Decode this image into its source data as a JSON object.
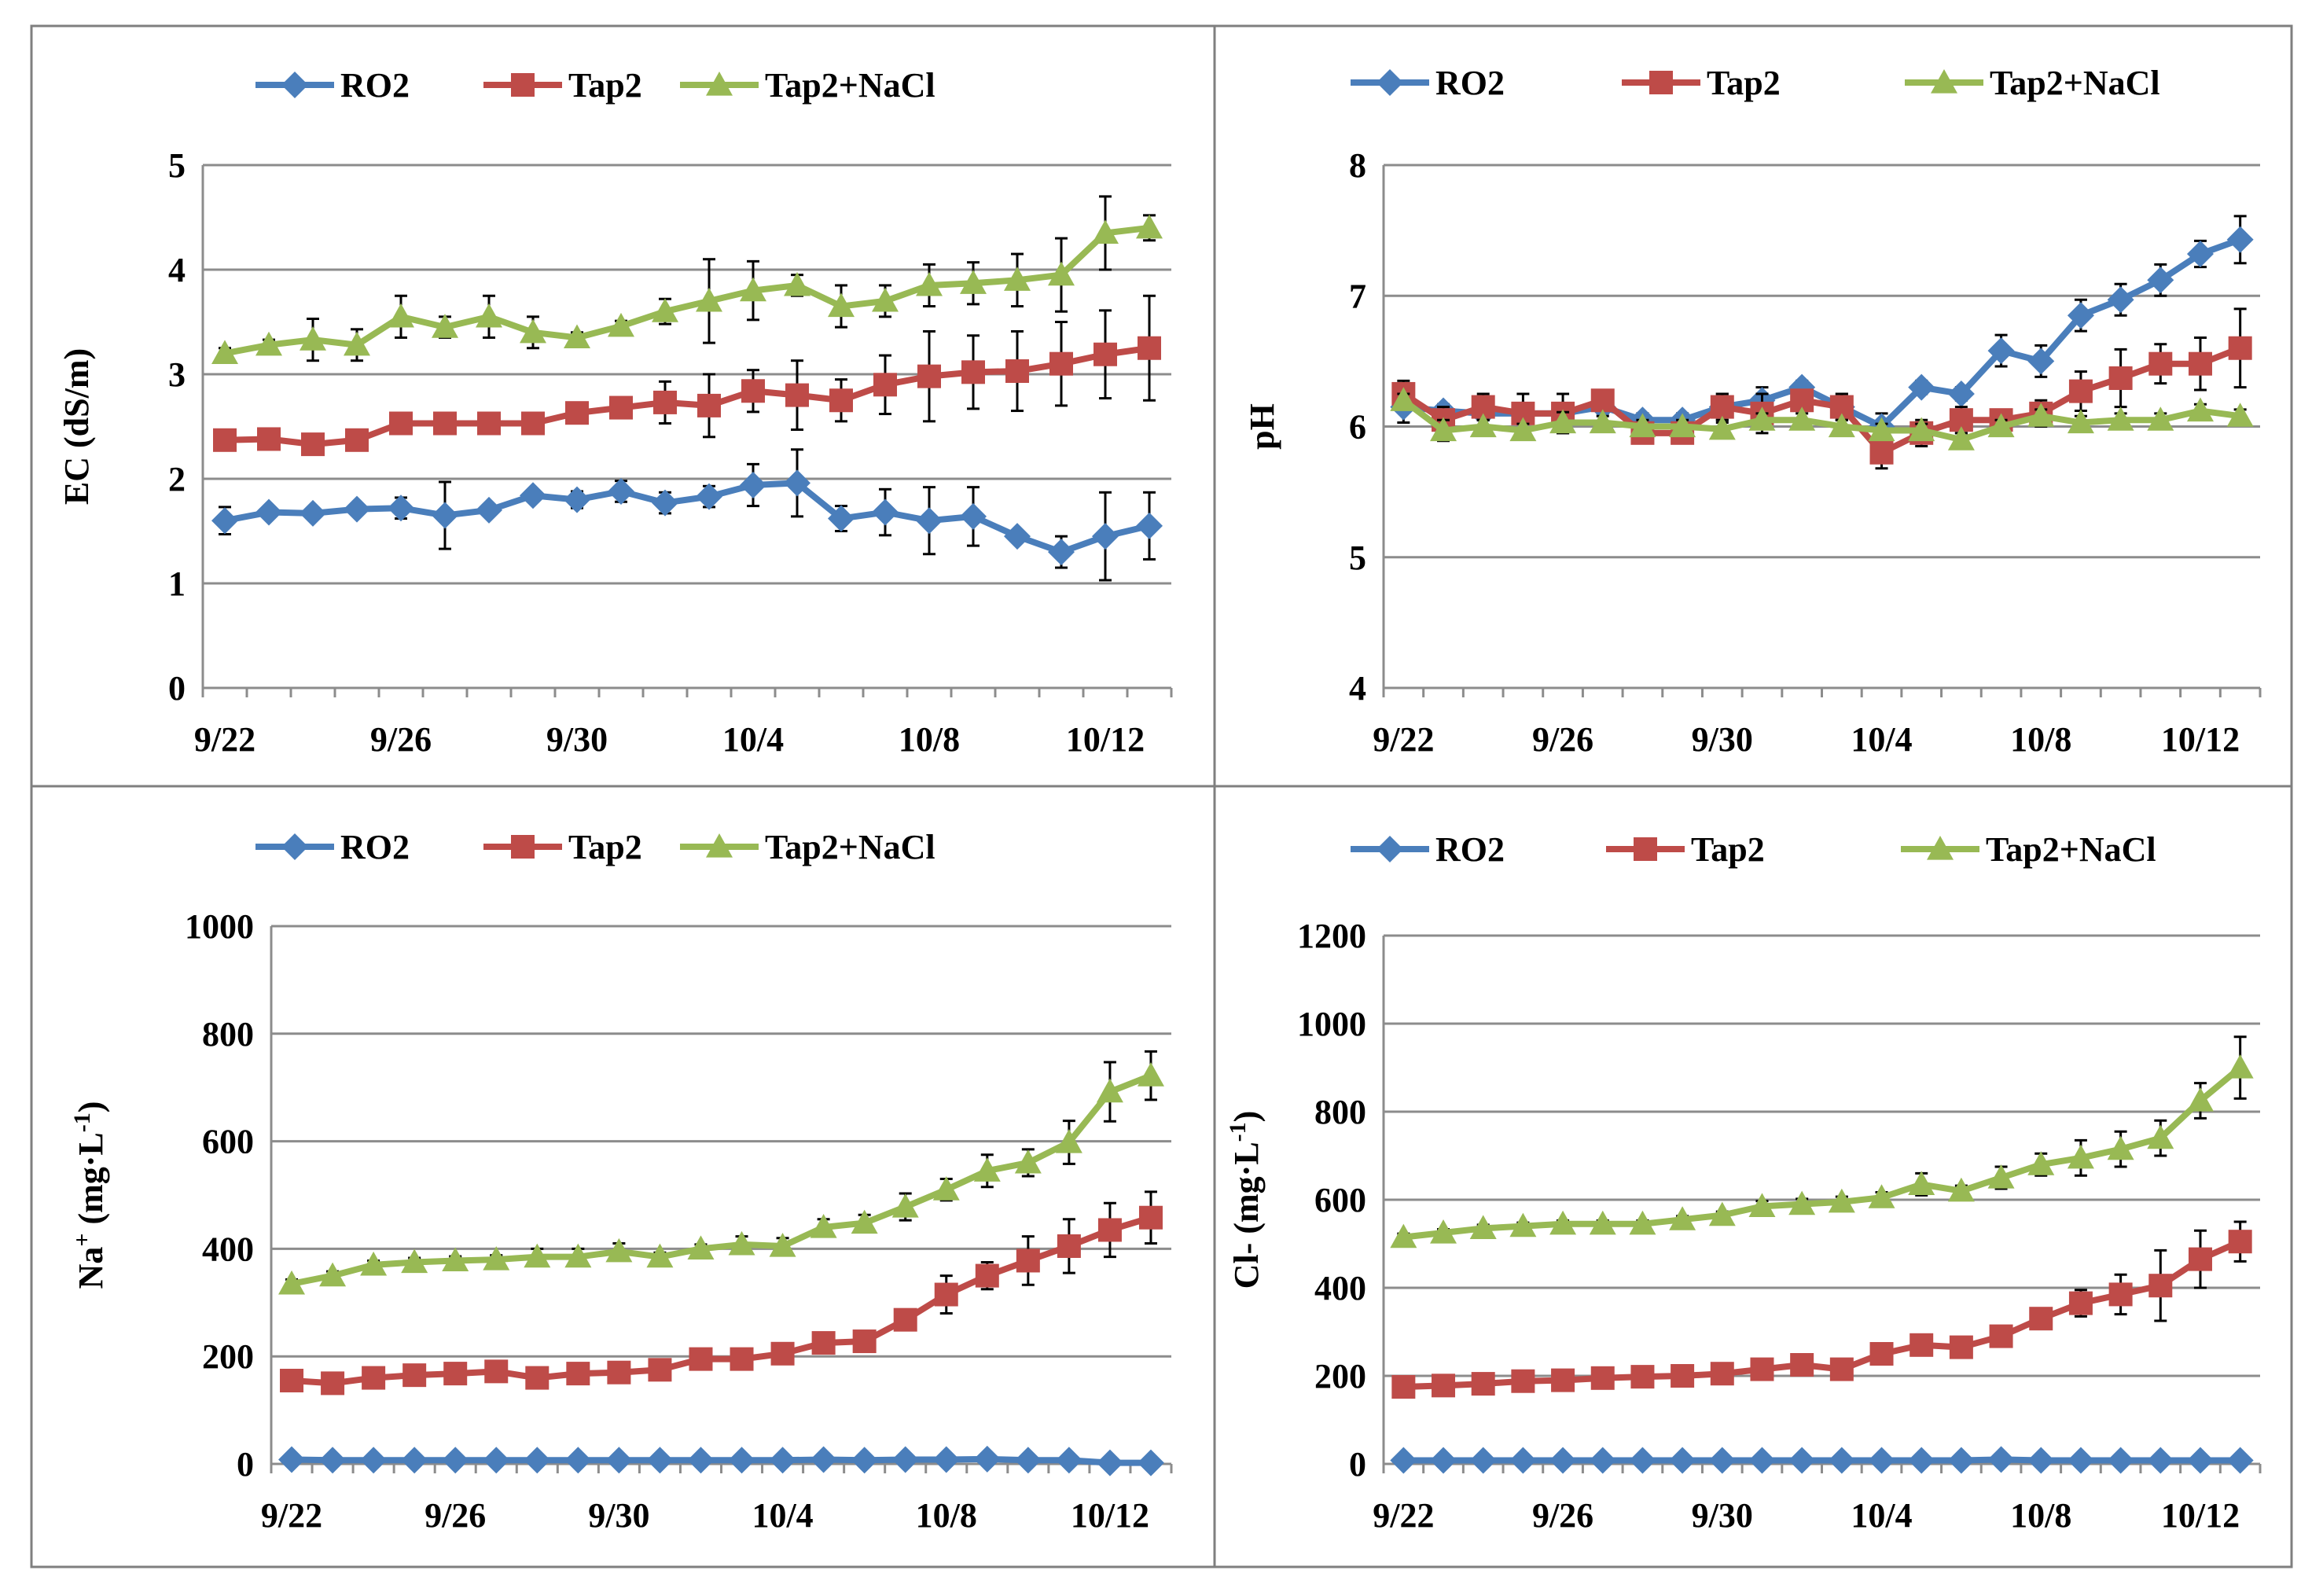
{
  "chart_data": [
    {
      "type": "line",
      "ylabel": "EC (dS/m)",
      "ylim": [
        0,
        5
      ],
      "yticks": [
        0,
        1,
        2,
        3,
        4,
        5
      ],
      "grid": true,
      "legend": "top",
      "x": [
        "9/22",
        "9/23",
        "9/24",
        "9/25",
        "9/26",
        "9/27",
        "9/28",
        "9/29",
        "9/30",
        "10/1",
        "10/2",
        "10/3",
        "10/4",
        "10/5",
        "10/6",
        "10/7",
        "10/8",
        "10/9",
        "10/10",
        "10/11",
        "10/12",
        "10/13"
      ],
      "xtick_labels": [
        "9/22",
        "9/26",
        "9/30",
        "10/4",
        "10/8",
        "10/12"
      ],
      "series": [
        {
          "name": "RO2",
          "color": "#4a7ebb",
          "marker": "diamond",
          "values": [
            1.6,
            1.68,
            1.67,
            1.71,
            1.72,
            1.65,
            1.7,
            1.84,
            1.8,
            1.88,
            1.77,
            1.83,
            1.94,
            1.96,
            1.62,
            1.68,
            1.6,
            1.64,
            1.45,
            1.3,
            1.45,
            1.55
          ],
          "errors": [
            0.13,
            0.05,
            0.05,
            0.05,
            0.1,
            0.32,
            0.05,
            0.05,
            0.08,
            0.1,
            0.1,
            0.1,
            0.2,
            0.32,
            0.12,
            0.22,
            0.32,
            0.28,
            0.05,
            0.15,
            0.42,
            0.32
          ]
        },
        {
          "name": "Tap2",
          "color": "#be4b48",
          "marker": "square",
          "values": [
            2.37,
            2.38,
            2.33,
            2.37,
            2.53,
            2.53,
            2.53,
            2.53,
            2.63,
            2.68,
            2.73,
            2.7,
            2.84,
            2.8,
            2.75,
            2.9,
            2.98,
            3.02,
            3.03,
            3.1,
            3.19,
            3.25
          ],
          "errors": [
            0.05,
            0.05,
            0.05,
            0.05,
            0.05,
            0.05,
            0.05,
            0.05,
            0.05,
            0.05,
            0.2,
            0.3,
            0.2,
            0.33,
            0.2,
            0.28,
            0.43,
            0.35,
            0.38,
            0.4,
            0.42,
            0.5
          ]
        },
        {
          "name": "Tap2+NaCl",
          "color": "#98b954",
          "marker": "triangle",
          "values": [
            3.2,
            3.28,
            3.33,
            3.28,
            3.55,
            3.45,
            3.55,
            3.4,
            3.35,
            3.46,
            3.6,
            3.7,
            3.8,
            3.85,
            3.65,
            3.7,
            3.85,
            3.87,
            3.9,
            3.95,
            4.35,
            4.4
          ],
          "errors": [
            0.05,
            0.05,
            0.2,
            0.15,
            0.2,
            0.1,
            0.2,
            0.15,
            0.05,
            0.05,
            0.12,
            0.4,
            0.28,
            0.1,
            0.2,
            0.15,
            0.2,
            0.2,
            0.25,
            0.35,
            0.35,
            0.12
          ]
        }
      ]
    },
    {
      "type": "line",
      "ylabel": "pH",
      "ylim": [
        4,
        8
      ],
      "yticks": [
        4,
        5,
        6,
        7,
        8
      ],
      "grid": true,
      "legend": "top",
      "x": [
        "9/22",
        "9/23",
        "9/24",
        "9/25",
        "9/26",
        "9/27",
        "9/28",
        "9/29",
        "9/30",
        "10/1",
        "10/2",
        "10/3",
        "10/4",
        "10/5",
        "10/6",
        "10/7",
        "10/8",
        "10/9",
        "10/10",
        "10/11",
        "10/12",
        "10/13"
      ],
      "xtick_labels": [
        "9/22",
        "9/26",
        "9/30",
        "10/4",
        "10/8",
        "10/12"
      ],
      "series": [
        {
          "name": "RO2",
          "color": "#4a7ebb",
          "marker": "diamond",
          "values": [
            6.15,
            6.12,
            6.1,
            6.1,
            6.1,
            6.15,
            6.05,
            6.05,
            6.15,
            6.2,
            6.3,
            6.15,
            6.0,
            6.3,
            6.25,
            6.58,
            6.5,
            6.85,
            6.97,
            7.12,
            7.32,
            7.43
          ],
          "errors": [
            0.12,
            0.05,
            0.05,
            0.05,
            0.05,
            0.05,
            0.05,
            0.05,
            0.1,
            0.1,
            0.05,
            0.1,
            0.1,
            0.05,
            0.05,
            0.12,
            0.12,
            0.12,
            0.12,
            0.12,
            0.1,
            0.18
          ]
        },
        {
          "name": "Tap2",
          "color": "#be4b48",
          "marker": "square",
          "values": [
            6.25,
            6.05,
            6.15,
            6.1,
            6.1,
            6.2,
            5.95,
            5.95,
            6.15,
            6.1,
            6.2,
            6.15,
            5.8,
            5.95,
            6.05,
            6.05,
            6.1,
            6.27,
            6.37,
            6.48,
            6.48,
            6.6
          ],
          "errors": [
            0.1,
            0.1,
            0.1,
            0.15,
            0.15,
            0.05,
            0.05,
            0.05,
            0.1,
            0.15,
            0.05,
            0.1,
            0.12,
            0.1,
            0.1,
            0.05,
            0.1,
            0.15,
            0.22,
            0.15,
            0.2,
            0.3
          ]
        },
        {
          "name": "Tap2+NaCl",
          "color": "#98b954",
          "marker": "triangle",
          "values": [
            6.2,
            5.97,
            6.0,
            5.97,
            6.03,
            6.03,
            6.0,
            6.0,
            5.98,
            6.05,
            6.05,
            6.0,
            5.97,
            5.97,
            5.9,
            6.0,
            6.08,
            6.03,
            6.05,
            6.05,
            6.12,
            6.08
          ],
          "errors": [
            0.05,
            0.08,
            0.05,
            0.05,
            0.08,
            0.05,
            0.05,
            0.05,
            0.05,
            0.05,
            0.05,
            0.05,
            0.05,
            0.05,
            0.05,
            0.05,
            0.05,
            0.05,
            0.05,
            0.05,
            0.05,
            0.05
          ]
        }
      ]
    },
    {
      "type": "line",
      "ylabel_main": "Na",
      "ylabel_sup": "+",
      "ylabel_units_start": " (mg·L",
      "ylabel_units_sup": "-1",
      "ylabel_units_end": ")",
      "ylim": [
        0,
        1000
      ],
      "yticks": [
        0,
        200,
        400,
        600,
        800,
        1000
      ],
      "grid": true,
      "legend": "top",
      "x": [
        "9/22",
        "9/23",
        "9/24",
        "9/25",
        "9/26",
        "9/27",
        "9/28",
        "9/29",
        "9/30",
        "10/1",
        "10/2",
        "10/3",
        "10/4",
        "10/5",
        "10/6",
        "10/7",
        "10/8",
        "10/9",
        "10/10",
        "10/11",
        "10/12",
        "10/13"
      ],
      "xtick_labels": [
        "9/22",
        "9/26",
        "9/30",
        "10/4",
        "10/8",
        "10/12"
      ],
      "series": [
        {
          "name": "RO2",
          "color": "#4a7ebb",
          "marker": "diamond",
          "values": [
            8,
            7,
            7,
            7,
            7,
            7,
            7,
            7,
            7,
            7,
            7,
            7,
            7,
            8,
            7,
            8,
            8,
            9,
            7,
            7,
            2,
            2
          ],
          "errors": [
            0,
            0,
            0,
            0,
            0,
            0,
            0,
            0,
            0,
            0,
            0,
            0,
            0,
            0,
            0,
            0,
            0,
            0,
            0,
            0,
            0,
            0
          ]
        },
        {
          "name": "Tap2",
          "color": "#be4b48",
          "marker": "square",
          "values": [
            155,
            150,
            160,
            165,
            168,
            172,
            160,
            168,
            170,
            175,
            195,
            195,
            205,
            225,
            228,
            268,
            315,
            350,
            378,
            405,
            435,
            458
          ],
          "errors": [
            8,
            8,
            8,
            8,
            8,
            8,
            8,
            8,
            8,
            8,
            8,
            8,
            8,
            8,
            8,
            12,
            35,
            25,
            45,
            50,
            50,
            48
          ]
        },
        {
          "name": "Tap2+NaCl",
          "color": "#98b954",
          "marker": "triangle",
          "values": [
            335,
            350,
            370,
            375,
            378,
            380,
            385,
            385,
            395,
            385,
            400,
            408,
            405,
            440,
            448,
            478,
            510,
            545,
            560,
            598,
            692,
            722
          ],
          "errors": [
            8,
            8,
            8,
            8,
            8,
            8,
            15,
            15,
            15,
            8,
            8,
            15,
            15,
            15,
            15,
            25,
            20,
            30,
            25,
            40,
            55,
            45
          ]
        }
      ]
    },
    {
      "type": "line",
      "ylabel_main": "Cl-",
      "ylabel_units_start": " (mg·L",
      "ylabel_units_sup": "-1",
      "ylabel_units_end": ")",
      "ylim": [
        0,
        1200
      ],
      "yticks": [
        0,
        200,
        400,
        600,
        800,
        1000,
        1200
      ],
      "grid": true,
      "legend": "top",
      "x": [
        "9/22",
        "9/23",
        "9/24",
        "9/25",
        "9/26",
        "9/27",
        "9/28",
        "9/29",
        "9/30",
        "10/1",
        "10/2",
        "10/3",
        "10/4",
        "10/5",
        "10/6",
        "10/7",
        "10/8",
        "10/9",
        "10/10",
        "10/11",
        "10/12",
        "10/13"
      ],
      "xtick_labels": [
        "9/22",
        "9/26",
        "9/30",
        "10/4",
        "10/8",
        "10/12"
      ],
      "series": [
        {
          "name": "RO2",
          "color": "#4a7ebb",
          "marker": "diamond",
          "values": [
            8,
            8,
            8,
            8,
            8,
            8,
            8,
            8,
            8,
            8,
            8,
            8,
            8,
            8,
            8,
            10,
            8,
            8,
            8,
            8,
            8,
            8
          ],
          "errors": [
            0,
            0,
            0,
            0,
            0,
            0,
            0,
            0,
            0,
            0,
            0,
            0,
            0,
            0,
            0,
            0,
            0,
            0,
            0,
            0,
            0,
            0
          ]
        },
        {
          "name": "Tap2",
          "color": "#be4b48",
          "marker": "square",
          "values": [
            175,
            178,
            182,
            188,
            190,
            195,
            198,
            200,
            205,
            215,
            225,
            215,
            250,
            270,
            265,
            290,
            330,
            365,
            385,
            405,
            465,
            505
          ],
          "errors": [
            8,
            8,
            8,
            8,
            8,
            8,
            8,
            8,
            8,
            8,
            12,
            12,
            12,
            12,
            12,
            15,
            15,
            30,
            45,
            80,
            65,
            45
          ]
        },
        {
          "name": "Tap2+NaCl",
          "color": "#98b954",
          "marker": "triangle",
          "values": [
            515,
            525,
            535,
            540,
            545,
            545,
            545,
            555,
            565,
            585,
            590,
            595,
            605,
            635,
            620,
            650,
            680,
            695,
            715,
            740,
            825,
            900
          ],
          "errors": [
            8,
            8,
            8,
            8,
            8,
            8,
            8,
            8,
            8,
            12,
            12,
            12,
            12,
            25,
            12,
            25,
            25,
            40,
            40,
            40,
            40,
            70
          ]
        }
      ]
    }
  ]
}
